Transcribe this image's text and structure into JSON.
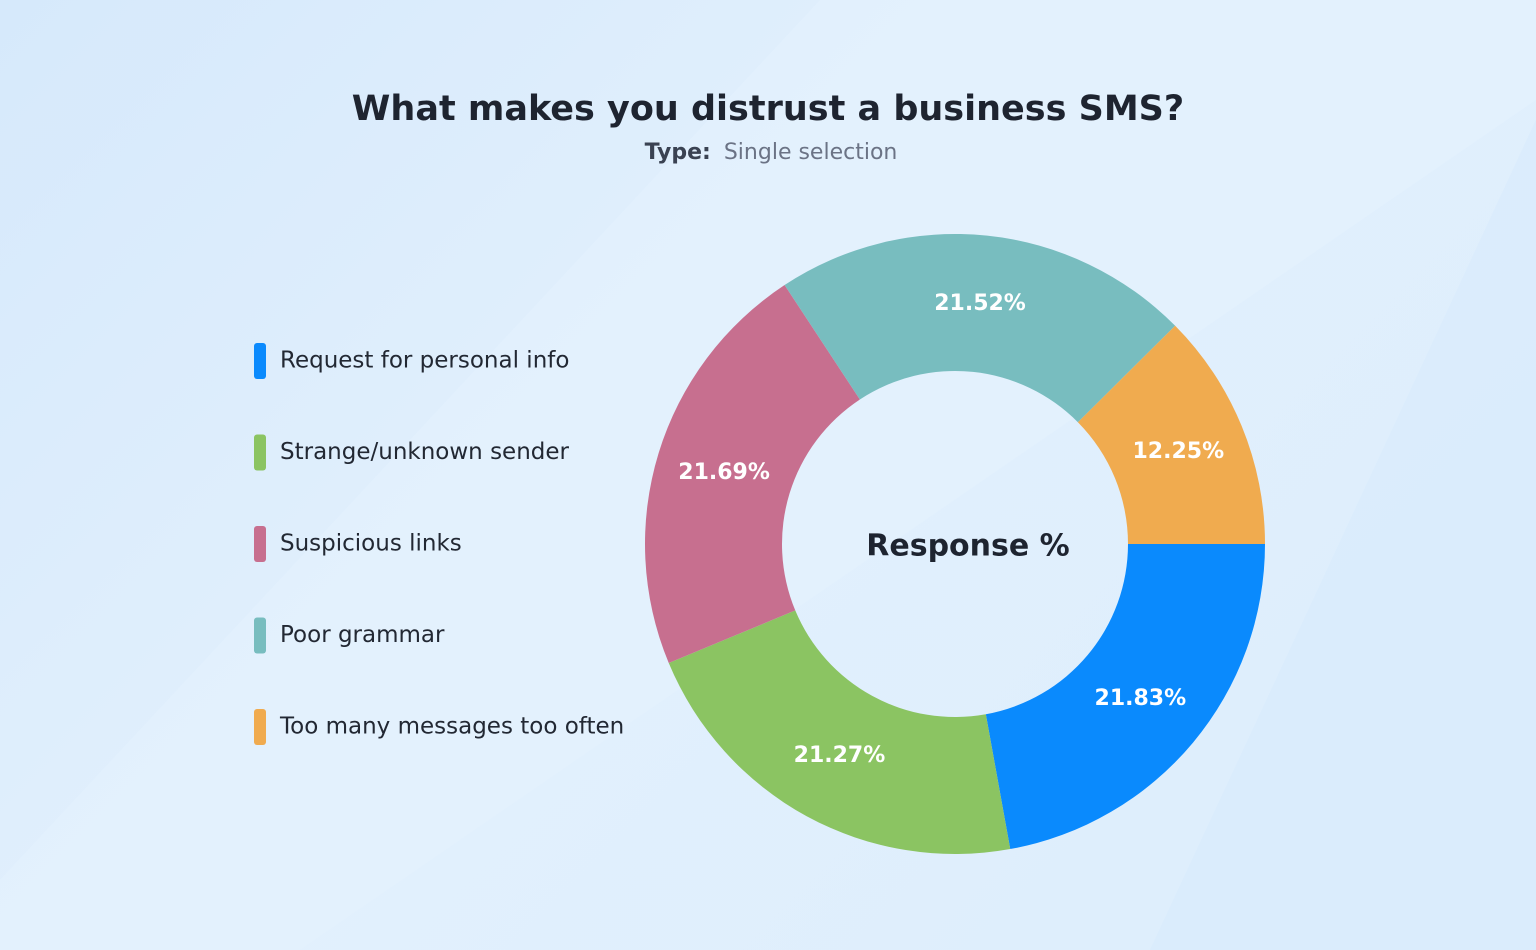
{
  "chart_data": {
    "type": "donut",
    "title": "What makes you distrust a business SMS?",
    "subtitle_label": "Type:",
    "subtitle": "Single selection",
    "center_label": "Response %",
    "series": [
      {
        "name": "Request for personal info",
        "color": "#0a8afd",
        "value": 21.83,
        "value_label": "21.83%"
      },
      {
        "name": "Strange/unknown sender",
        "color": "#8bc462",
        "value": 21.27,
        "value_label": "21.27%"
      },
      {
        "name": "Suspicious links",
        "color": "#c76f8f",
        "value": 21.69,
        "value_label": "21.69%"
      },
      {
        "name": "Poor grammar",
        "color": "#78bdbf",
        "value": 21.52,
        "value_label": "21.52%"
      },
      {
        "name": "Too many messages too often",
        "color": "#f0ab4f",
        "value": 12.25,
        "value_label": "12.25%"
      }
    ]
  }
}
